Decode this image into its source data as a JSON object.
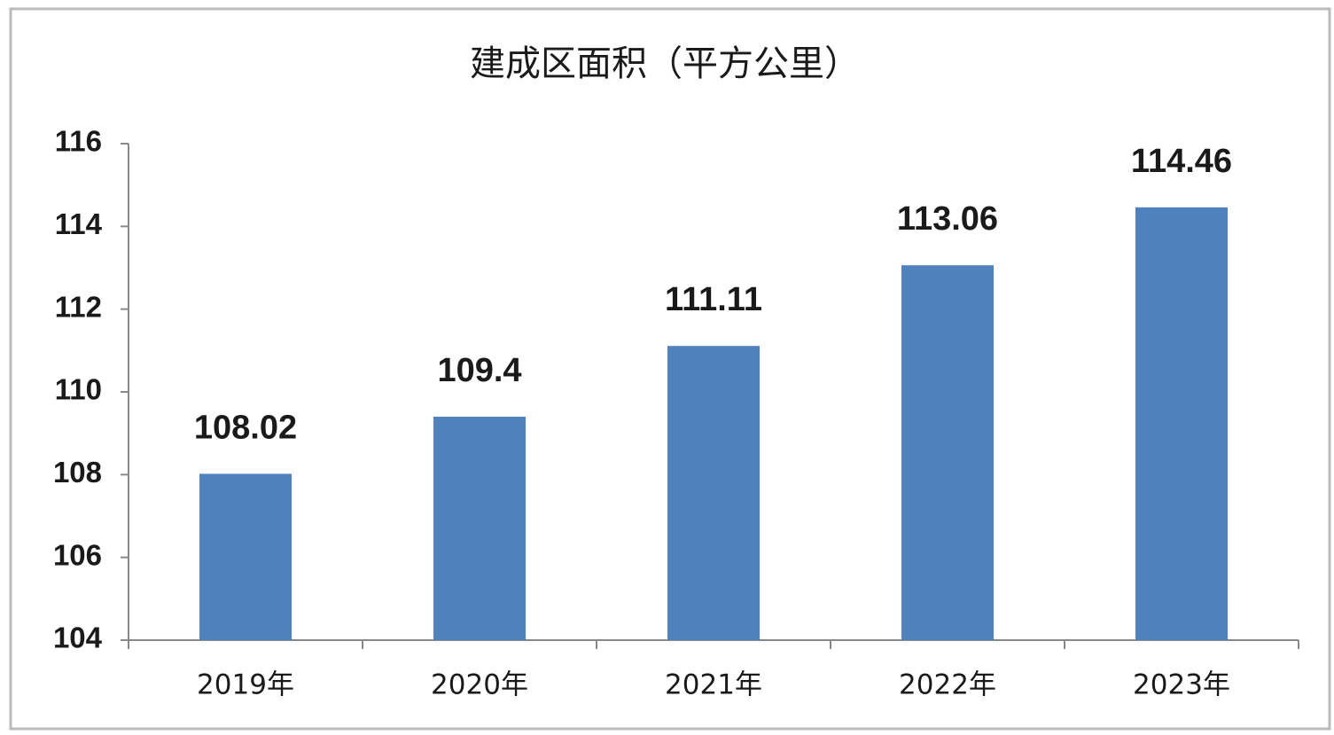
{
  "chart_data": {
    "type": "bar",
    "title": "建成区面积（平方公里）",
    "categories": [
      "2019年",
      "2020年",
      "2021年",
      "2022年",
      "2023年"
    ],
    "values": [
      108.02,
      109.4,
      111.11,
      113.06,
      114.46
    ],
    "color": "#4f81bd",
    "ylim": [
      104,
      116
    ],
    "yticks": [
      104,
      106,
      108,
      110,
      112,
      114,
      116
    ]
  }
}
